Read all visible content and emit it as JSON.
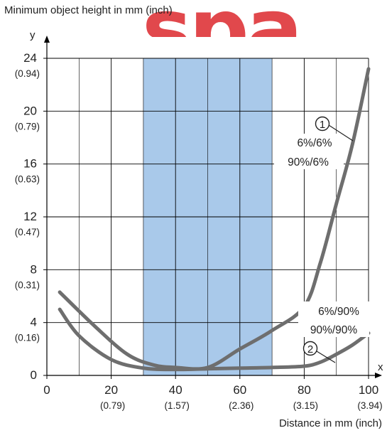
{
  "watermark_text": "spa",
  "chart_data": {
    "type": "line",
    "title": "Minimum object height in mm (inch)",
    "xlabel": "Distance in mm (inch)",
    "ylabel": "y",
    "xaxis_letter": "x",
    "xlim": [
      0,
      100
    ],
    "ylim": [
      0,
      24
    ],
    "x_ticks": [
      {
        "value": 0,
        "label": "0",
        "sub": ""
      },
      {
        "value": 20,
        "label": "20",
        "sub": "(0.79)"
      },
      {
        "value": 40,
        "label": "40",
        "sub": "(1.57)"
      },
      {
        "value": 60,
        "label": "60",
        "sub": "(2.36)"
      },
      {
        "value": 80,
        "label": "80",
        "sub": "(3.15)"
      },
      {
        "value": 100,
        "label": "100",
        "sub": "(3.94)"
      }
    ],
    "y_ticks": [
      {
        "value": 0,
        "label": "0",
        "sub": ""
      },
      {
        "value": 4,
        "label": "4",
        "sub": "(0.16)"
      },
      {
        "value": 8,
        "label": "8",
        "sub": "(0.31)"
      },
      {
        "value": 12,
        "label": "12",
        "sub": "(0.47)"
      },
      {
        "value": 16,
        "label": "16",
        "sub": "(0.63)"
      },
      {
        "value": 20,
        "label": "20",
        "sub": "(0.79)"
      },
      {
        "value": 24,
        "label": "24",
        "sub": "(0.94)"
      }
    ],
    "x_gridlines": [
      10,
      20,
      30,
      40,
      50,
      60,
      70,
      80,
      90,
      100
    ],
    "y_gridlines": [
      4,
      8,
      12,
      16,
      20,
      24
    ],
    "grid": true,
    "highlight_band": {
      "x_from": 30,
      "x_to": 70,
      "color": "#a9c9ea"
    },
    "series": [
      {
        "marker": "1",
        "labels": [
          "6%/6%",
          "90%/6%"
        ],
        "color": "#6e6e6e",
        "x": [
          4,
          15,
          25,
          33,
          40,
          50,
          60,
          70,
          80,
          85,
          90,
          95,
          100
        ],
        "y": [
          6.3,
          3.7,
          1.6,
          0.8,
          0.6,
          0.6,
          2.0,
          3.4,
          5.2,
          8.5,
          13,
          17.5,
          23.2
        ]
      },
      {
        "marker": "2",
        "labels": [
          "6%/90%",
          "90%/90%"
        ],
        "color": "#6e6e6e",
        "x": [
          4,
          10,
          20,
          30,
          40,
          50,
          60,
          70,
          80,
          85,
          90,
          95,
          100
        ],
        "y": [
          5.0,
          3.0,
          1.2,
          0.55,
          0.45,
          0.5,
          0.55,
          0.6,
          0.7,
          1.0,
          1.6,
          2.3,
          3.2
        ]
      }
    ],
    "annotations": [
      {
        "marker": "1",
        "text_lines": [
          "6%/6%",
          "90%/6%"
        ],
        "anchor_series": 0,
        "anchor_x": 95
      },
      {
        "marker": "2",
        "text_lines": [
          "6%/90%",
          "90%/90%"
        ],
        "anchor_series": 1,
        "anchor_x": 91
      }
    ]
  }
}
